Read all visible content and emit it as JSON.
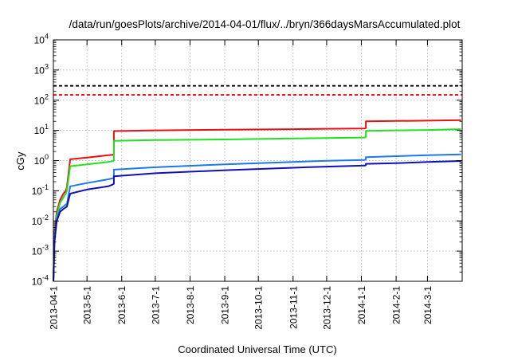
{
  "chart_data": {
    "type": "line",
    "title": "/data/run/goesPlots/archive/2014-04-01/flux/../bryn/366daysMarsAccumulated.plot",
    "xlabel": "Coordinated Universal Time (UTC)",
    "ylabel": "cGy",
    "y_scale": "log",
    "ylim_exponents": [
      -4,
      4
    ],
    "y_ticks": [
      {
        "base": "10",
        "exp": "-4"
      },
      {
        "base": "10",
        "exp": "-3"
      },
      {
        "base": "10",
        "exp": "-2"
      },
      {
        "base": "10",
        "exp": "-1"
      },
      {
        "base": "10",
        "exp": "0"
      },
      {
        "base": "10",
        "exp": "1"
      },
      {
        "base": "10",
        "exp": "2"
      },
      {
        "base": "10",
        "exp": "3"
      },
      {
        "base": "10",
        "exp": "4"
      }
    ],
    "x_range": [
      "2013-04-01",
      "2014-04-01"
    ],
    "x_ticks": [
      "2013-04-1",
      "2013-5-1",
      "2013-6-1",
      "2013-7-1",
      "2013-8-1",
      "2013-9-1",
      "2013-10-1",
      "2013-11-1",
      "2013-12-1",
      "2014-1-1",
      "2014-2-1",
      "2014-3-1"
    ],
    "grid": true,
    "reference_lines": [
      {
        "y": 300,
        "color": "#000000",
        "style": "dashed"
      },
      {
        "y": 150,
        "color": "#ff0000",
        "style": "dashed"
      }
    ],
    "series": [
      {
        "color": "#e81010",
        "x": [
          "2013-04-01",
          "2013-04-02",
          "2013-04-04",
          "2013-04-07",
          "2013-04-10",
          "2013-04-12",
          "2013-04-13",
          "2013-04-16",
          "2013-05-01",
          "2013-05-20",
          "2013-05-24",
          "2013-05-25",
          "2013-05-25",
          "2013-07-01",
          "2013-09-01",
          "2013-11-01",
          "2013-12-01",
          "2014-01-04",
          "2014-01-05",
          "2014-01-05",
          "2014-02-01",
          "2014-03-01",
          "2014-03-31"
        ],
        "y": [
          0.0001,
          0.004,
          0.02,
          0.05,
          0.08,
          0.1,
          0.13,
          1.1,
          1.25,
          1.5,
          1.55,
          1.6,
          9.5,
          10.0,
          10.5,
          11.0,
          11.3,
          11.5,
          12.0,
          20.0,
          20.5,
          21.0,
          22.0
        ]
      },
      {
        "color": "#22e022",
        "x": [
          "2013-04-01",
          "2013-04-02",
          "2013-04-04",
          "2013-04-07",
          "2013-04-10",
          "2013-04-12",
          "2013-04-13",
          "2013-04-16",
          "2013-05-01",
          "2013-05-20",
          "2013-05-24",
          "2013-05-25",
          "2013-05-25",
          "2013-07-01",
          "2013-09-01",
          "2013-11-01",
          "2013-12-01",
          "2014-01-04",
          "2014-01-05",
          "2014-01-05",
          "2014-02-01",
          "2014-03-01",
          "2014-03-31"
        ],
        "y": [
          0.0001,
          0.003,
          0.015,
          0.04,
          0.06,
          0.08,
          0.1,
          0.65,
          0.75,
          0.9,
          0.95,
          1.0,
          4.5,
          4.8,
          5.0,
          5.4,
          5.6,
          5.8,
          6.0,
          9.6,
          10.0,
          10.3,
          11.0
        ]
      },
      {
        "color": "#1e78e6",
        "x": [
          "2013-04-01",
          "2013-04-02",
          "2013-04-04",
          "2013-04-07",
          "2013-04-10",
          "2013-04-12",
          "2013-04-13",
          "2013-04-16",
          "2013-05-01",
          "2013-05-20",
          "2013-05-24",
          "2013-05-25",
          "2013-05-25",
          "2013-07-01",
          "2013-09-01",
          "2013-11-01",
          "2013-12-01",
          "2014-01-04",
          "2014-01-05",
          "2014-01-05",
          "2014-02-01",
          "2014-03-01",
          "2014-03-31"
        ],
        "y": [
          0.0001,
          0.0025,
          0.012,
          0.025,
          0.03,
          0.035,
          0.036,
          0.14,
          0.18,
          0.24,
          0.26,
          0.27,
          0.5,
          0.6,
          0.75,
          0.9,
          0.98,
          1.05,
          1.1,
          1.3,
          1.4,
          1.5,
          1.6
        ]
      },
      {
        "color": "#1010b8",
        "x": [
          "2013-04-01",
          "2013-04-02",
          "2013-04-04",
          "2013-04-07",
          "2013-04-10",
          "2013-04-12",
          "2013-04-13",
          "2013-04-16",
          "2013-05-01",
          "2013-05-20",
          "2013-05-24",
          "2013-05-25",
          "2013-05-25",
          "2013-07-01",
          "2013-09-01",
          "2013-11-01",
          "2013-12-01",
          "2014-01-04",
          "2014-01-05",
          "2014-01-05",
          "2014-02-01",
          "2014-03-01",
          "2014-03-31"
        ],
        "y": [
          0.0001,
          0.002,
          0.01,
          0.02,
          0.025,
          0.028,
          0.03,
          0.08,
          0.11,
          0.14,
          0.16,
          0.17,
          0.3,
          0.38,
          0.48,
          0.58,
          0.63,
          0.68,
          0.7,
          0.78,
          0.82,
          0.9,
          0.97
        ]
      }
    ]
  }
}
